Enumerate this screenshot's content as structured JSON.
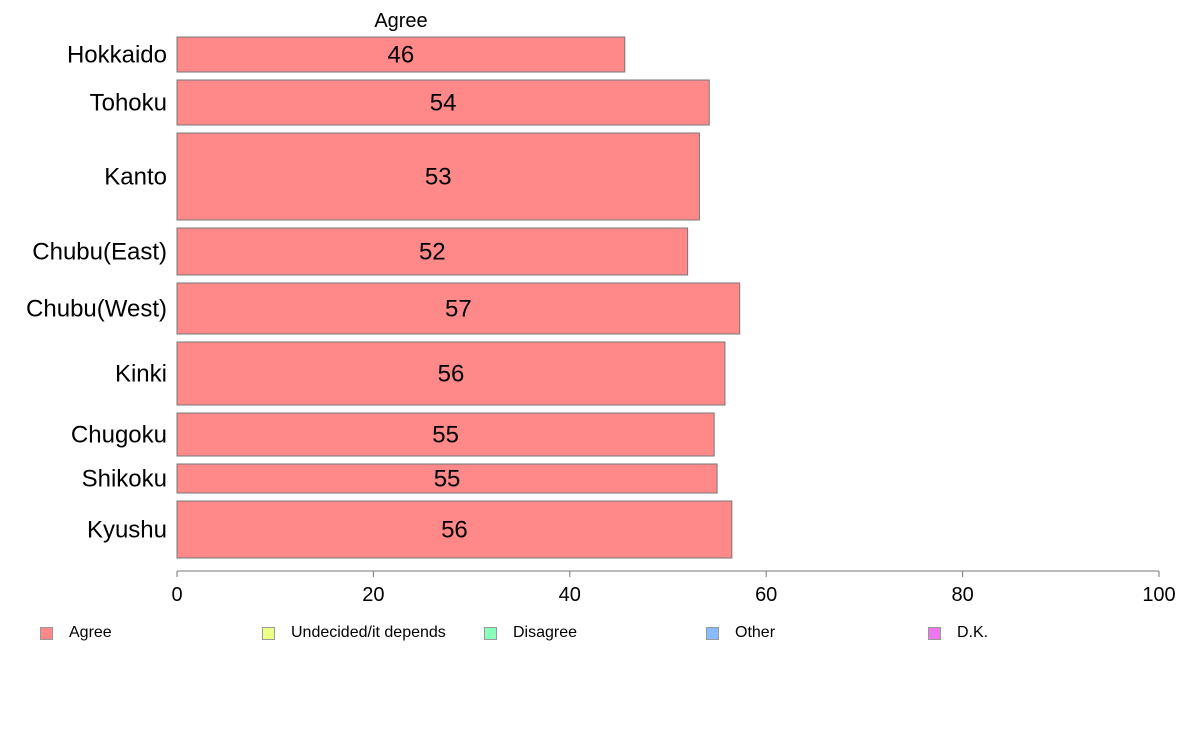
{
  "chart_data": {
    "type": "bar",
    "orientation": "horizontal",
    "title": "Agree",
    "categories": [
      "Hokkaido",
      "Tohoku",
      "Kanto",
      "Chubu(East)",
      "Chubu(West)",
      "Kinki",
      "Chugoku",
      "Shikoku",
      "Kyushu"
    ],
    "series": [
      {
        "name": "Agree",
        "color": "#ff8888",
        "values": [
          45.6,
          54.2,
          53.2,
          52.0,
          57.3,
          55.8,
          54.7,
          55.0,
          56.5
        ],
        "labels": [
          "46",
          "54",
          "53",
          "52",
          "57",
          "56",
          "55",
          "55",
          "56"
        ]
      }
    ],
    "xlim": [
      0,
      100
    ],
    "xticks": [
      "0",
      "20",
      "40",
      "60",
      "80",
      "100"
    ],
    "grid": false,
    "legend_position": "bottom",
    "legend": [
      {
        "label": "Agree",
        "color": "#ff8888"
      },
      {
        "label": "Undecided/it depends",
        "color": "#eeff88"
      },
      {
        "label": "Disagree",
        "color": "#88ffbb"
      },
      {
        "label": "Other",
        "color": "#88bbff"
      },
      {
        "label": "D.K.",
        "color": "#ee77ee"
      }
    ]
  }
}
